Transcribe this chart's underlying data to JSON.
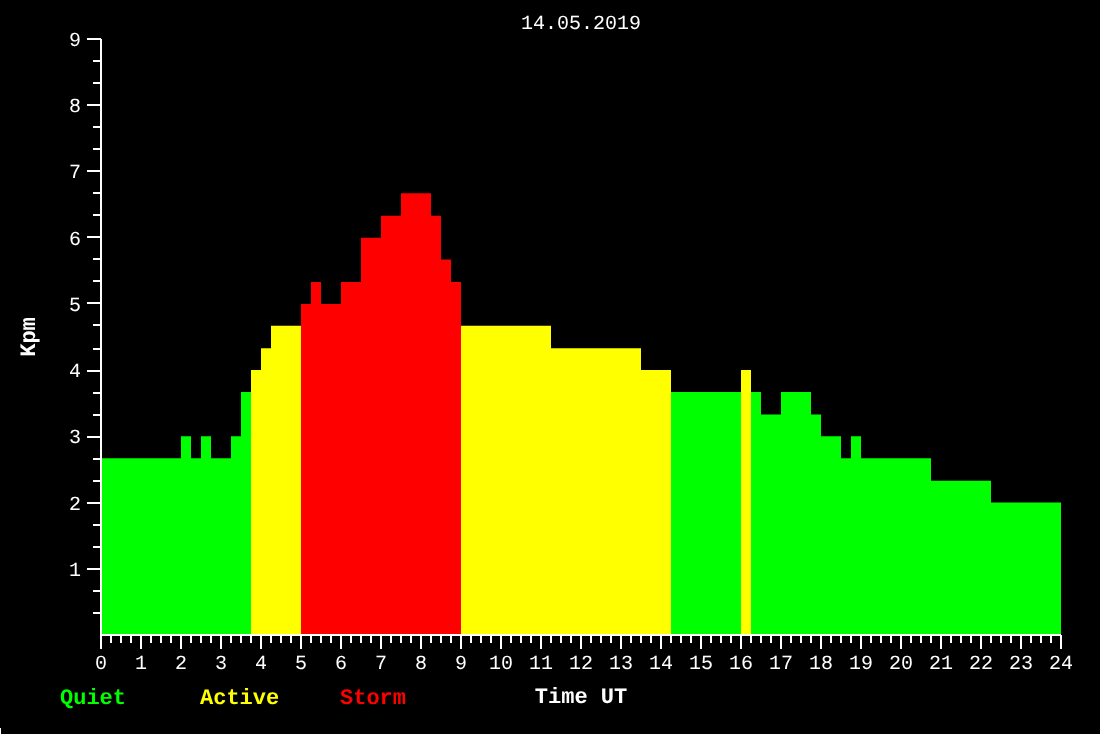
{
  "chart_data": {
    "type": "histogram",
    "title": "14.05.2019",
    "xlabel": "Time UT",
    "ylabel": "Kpm",
    "xlim": [
      0,
      24
    ],
    "ylim": [
      0,
      9
    ],
    "xticks": [
      0,
      1,
      2,
      3,
      4,
      5,
      6,
      7,
      8,
      9,
      10,
      11,
      12,
      13,
      14,
      15,
      16,
      17,
      18,
      19,
      20,
      21,
      22,
      23,
      24
    ],
    "yticks": [
      1,
      2,
      3,
      4,
      5,
      6,
      7,
      8,
      9
    ],
    "bins": [
      0,
      2,
      2.25,
      2.5,
      2.75,
      3.25,
      3.5,
      3.75,
      4,
      4.25,
      5,
      5.25,
      5.5,
      6,
      6.5,
      7,
      7.5,
      8.25,
      8.5,
      8.75,
      9,
      11.25,
      13.5,
      14.25,
      16,
      16.25,
      16.5,
      17,
      17.75,
      18,
      18.5,
      18.75,
      19,
      20.75,
      22.25,
      24
    ],
    "series": [
      {
        "name": "Quiet",
        "color": "#00ff00",
        "values": [
          2.67,
          3,
          2.67,
          3,
          2.67,
          3,
          3.67,
          null,
          null,
          null,
          null,
          null,
          null,
          null,
          null,
          null,
          null,
          null,
          null,
          null,
          null,
          null,
          null,
          3.67,
          null,
          3.67,
          3.33,
          3.67,
          3.33,
          3,
          2.67,
          3,
          2.67,
          2.33,
          2
        ]
      },
      {
        "name": "Active",
        "color": "#ffff00",
        "values": [
          null,
          null,
          null,
          null,
          null,
          null,
          null,
          4,
          4.33,
          4.67,
          null,
          null,
          null,
          null,
          null,
          null,
          null,
          null,
          null,
          null,
          4.67,
          4.33,
          4,
          null,
          4,
          null,
          null,
          null,
          null,
          null,
          null,
          null,
          null,
          null,
          null
        ]
      },
      {
        "name": "Storm",
        "color": "#ff0000",
        "values": [
          null,
          null,
          null,
          null,
          null,
          null,
          null,
          null,
          null,
          null,
          5,
          5.33,
          5,
          5.33,
          6,
          6.33,
          6.67,
          6.33,
          5.67,
          5.33,
          null,
          null,
          null,
          null,
          null,
          null,
          null,
          null,
          null,
          null,
          null,
          null,
          null,
          null,
          null
        ]
      }
    ]
  }
}
